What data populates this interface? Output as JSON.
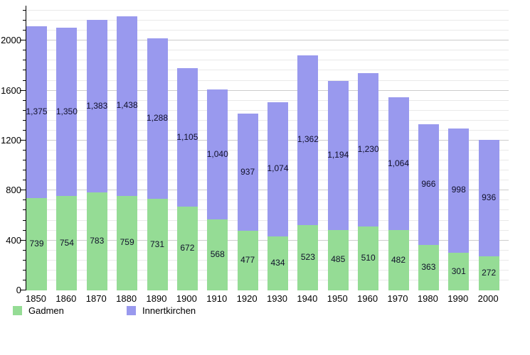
{
  "chart_data": {
    "type": "bar",
    "stacked": true,
    "categories": [
      "1850",
      "1860",
      "1870",
      "1880",
      "1890",
      "1900",
      "1910",
      "1920",
      "1930",
      "1940",
      "1950",
      "1960",
      "1970",
      "1980",
      "1990",
      "2000"
    ],
    "series": [
      {
        "name": "Gadmen",
        "color": "#95DC95",
        "values": [
          739,
          754,
          783,
          759,
          731,
          672,
          568,
          477,
          434,
          523,
          485,
          510,
          482,
          363,
          301,
          272
        ]
      },
      {
        "name": "Innertkirchen",
        "color": "#9999EE",
        "values": [
          1375,
          1350,
          1383,
          1438,
          1288,
          1105,
          1040,
          937,
          1074,
          1362,
          1194,
          1230,
          1064,
          966,
          998,
          936
        ]
      }
    ],
    "ylim": [
      0,
      2280
    ],
    "yticks": [
      0,
      400,
      800,
      1200,
      1600,
      2000
    ],
    "minor_tick_step": 80,
    "grid": true,
    "legend_position": "bottom",
    "value_label_color": "#10102a",
    "axis_color": "#000000",
    "grid_major_color": "#cccccc",
    "grid_minor_color": "#e9e9e9"
  }
}
